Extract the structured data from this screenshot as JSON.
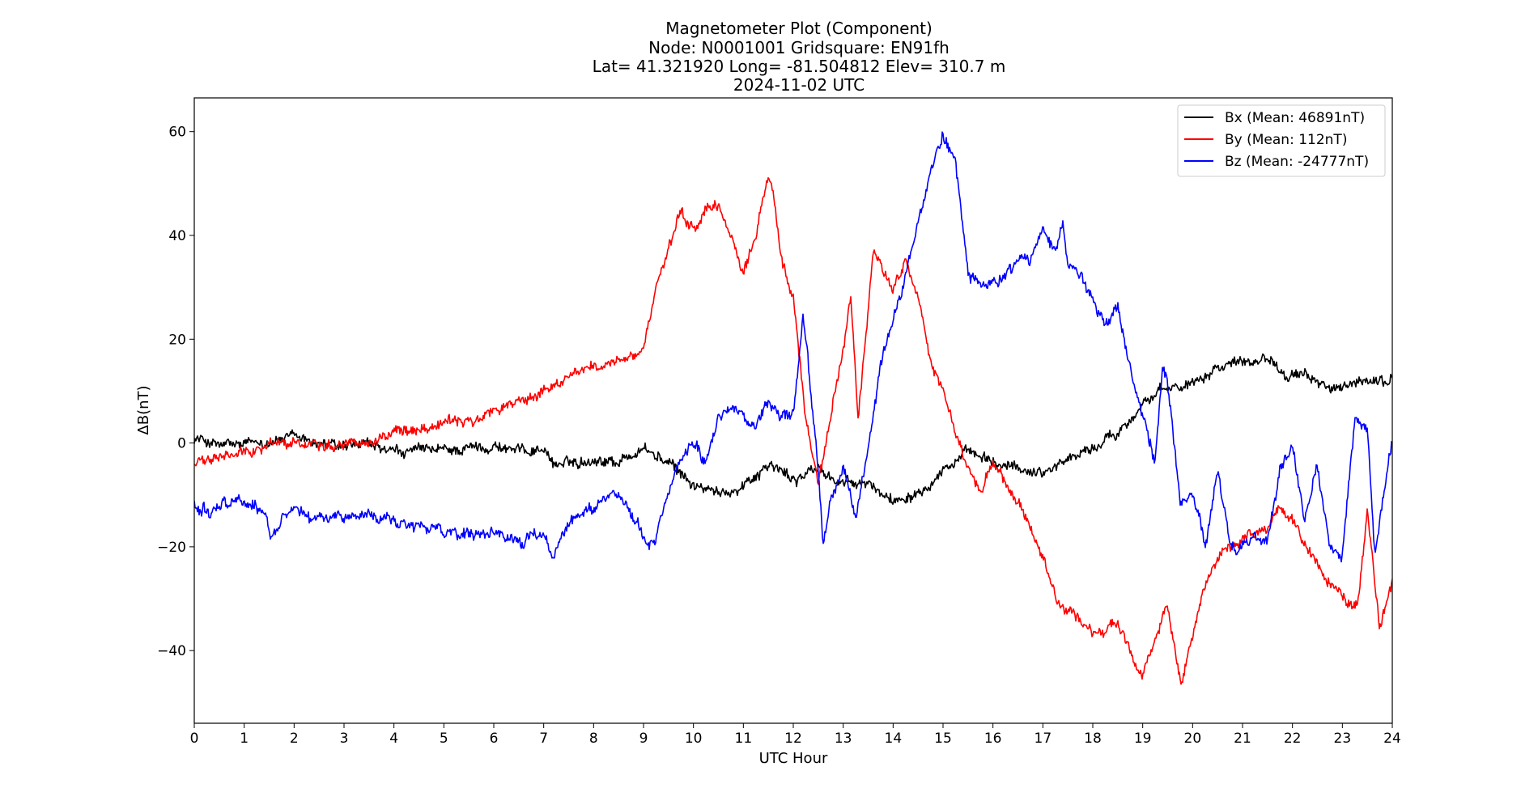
{
  "chart_data": {
    "type": "line",
    "title_lines": [
      "Magnetometer Plot (Component)",
      "Node:  N0001001     Gridsquare:  EN91fh",
      "Lat= 41.321920    Long= -81.504812    Elev= 310.7 m",
      "2024-11-02  UTC"
    ],
    "xlabel": "UTC Hour",
    "ylabel": "ΔB(nT)",
    "xlim": [
      0,
      24
    ],
    "ylim": [
      -54,
      66.5
    ],
    "x_ticks": [
      0,
      1,
      2,
      3,
      4,
      5,
      6,
      7,
      8,
      9,
      10,
      11,
      12,
      13,
      14,
      15,
      16,
      17,
      18,
      19,
      20,
      21,
      22,
      23,
      24
    ],
    "y_ticks": [
      -40,
      -20,
      0,
      20,
      40,
      60
    ],
    "y_tick_labels": [
      "−40",
      "−20",
      "0",
      "20",
      "40",
      "60"
    ],
    "grid": false,
    "legend_position": "top-right",
    "series": [
      {
        "name": "Bx (Mean: 46891nT)",
        "color": "#000000",
        "x": [
          0,
          0.5,
          1,
          1.5,
          2,
          2.5,
          3,
          3.5,
          4,
          4.5,
          5,
          5.5,
          6,
          6.5,
          7,
          7.2,
          7.5,
          8,
          8.5,
          9,
          9.5,
          10,
          10.5,
          11,
          11.5,
          12,
          12.5,
          13,
          13.5,
          14,
          14.5,
          15,
          15.5,
          16,
          16.5,
          17,
          17.5,
          18,
          18.5,
          19,
          19.5,
          20,
          20.5,
          21,
          21.5,
          22,
          22.5,
          23,
          23.5,
          24
        ],
        "y": [
          1,
          -0.5,
          -0.5,
          0.5,
          1,
          0,
          -1,
          -0.5,
          -2,
          -1.5,
          -1.5,
          -1,
          -0.5,
          -1.5,
          -1,
          -4,
          -4,
          -3,
          -3.5,
          -1,
          -4,
          -8,
          -10,
          -8,
          -4,
          -7,
          -5,
          -8,
          -8,
          -11,
          -9,
          -5,
          -2,
          -4,
          -5,
          -5.5,
          -3,
          -1,
          2,
          8,
          10,
          12,
          15,
          16,
          16.5,
          13,
          12,
          10,
          12,
          12
        ],
        "noise": 0.9
      },
      {
        "name": "By (Mean: 112nT)",
        "color": "#ff0000",
        "x": [
          0,
          0.5,
          1,
          1.5,
          2,
          2.5,
          3,
          3.5,
          4,
          4.5,
          5,
          5.5,
          6,
          6.5,
          7,
          7.5,
          8,
          8.5,
          9,
          9.2,
          9.5,
          9.75,
          10,
          10.25,
          10.5,
          10.75,
          11,
          11.25,
          11.5,
          11.6,
          11.75,
          12,
          12.25,
          12.5,
          12.75,
          13,
          13.15,
          13.3,
          13.6,
          14,
          14.25,
          14.5,
          14.75,
          15,
          15.25,
          15.5,
          15.75,
          16,
          16.25,
          16.5,
          17,
          17.25,
          17.5,
          18,
          18.5,
          19,
          19.5,
          19.75,
          20,
          20.25,
          20.5,
          21,
          21.5,
          21.75,
          22,
          22.5,
          23,
          23.3,
          23.5,
          23.75,
          24
        ],
        "y": [
          -4,
          -3,
          -2,
          0,
          0,
          0,
          0,
          0.5,
          2,
          3,
          4,
          4,
          6,
          8,
          10,
          13,
          15,
          15,
          18,
          28,
          37,
          44,
          41,
          45,
          45,
          40,
          33,
          40,
          52,
          48,
          35,
          28,
          5,
          -7,
          5,
          18,
          28,
          5,
          37,
          30,
          35,
          28,
          15,
          10,
          2,
          -5,
          -10,
          -4,
          -8,
          -12,
          -22,
          -30,
          -32,
          -37,
          -35,
          -45,
          -31,
          -47,
          -38,
          -28,
          -22,
          -19,
          -17,
          -12,
          -15,
          -24,
          -30,
          -32,
          -13,
          -35,
          -27
        ],
        "noise": 0.9
      },
      {
        "name": "Bz (Mean: -24777nT)",
        "color": "#0000ff",
        "x": [
          0,
          0.3,
          0.6,
          1,
          1.4,
          1.5,
          1.8,
          2,
          2.3,
          2.5,
          3,
          3.5,
          4,
          4.5,
          5,
          5.5,
          6,
          6.5,
          7,
          7.2,
          7.5,
          8,
          8.5,
          9,
          9.2,
          9.5,
          9.75,
          10,
          10.25,
          10.5,
          10.75,
          11,
          11.25,
          11.5,
          11.75,
          12,
          12.2,
          12.5,
          12.6,
          12.75,
          13,
          13.25,
          13.5,
          13.75,
          14,
          14.25,
          14.5,
          14.75,
          14.9,
          15,
          15.25,
          15.5,
          15.75,
          16,
          16.25,
          16.5,
          16.75,
          17,
          17.25,
          17.4,
          17.5,
          17.75,
          18,
          18.25,
          18.5,
          18.75,
          19,
          19.25,
          19.4,
          19.5,
          19.75,
          20,
          20.25,
          20.5,
          20.75,
          21,
          21.25,
          21.5,
          21.75,
          22,
          22.25,
          22.5,
          22.75,
          23,
          23.25,
          23.5,
          23.65,
          23.85,
          24
        ],
        "y": [
          -12,
          -13,
          -11,
          -11,
          -13,
          -18,
          -14,
          -13,
          -15,
          -14,
          -14,
          -14,
          -15,
          -16,
          -17,
          -18,
          -18,
          -19,
          -18,
          -22,
          -15,
          -12,
          -9,
          -18,
          -20,
          -10,
          -3,
          0,
          -3,
          5,
          8,
          5,
          3,
          8,
          5,
          5,
          24,
          -5,
          -20,
          -12,
          -5,
          -14,
          -2,
          15,
          25,
          32,
          42,
          52,
          57,
          60,
          55,
          33,
          30,
          30,
          32,
          35,
          35,
          42,
          38,
          44,
          35,
          32,
          28,
          23,
          25,
          14,
          5,
          -3,
          15,
          12,
          -12,
          -10,
          -20,
          -5,
          -19,
          -20,
          -18,
          -20,
          -5,
          -1,
          -15,
          -5,
          -20,
          -22,
          5,
          3,
          -22,
          -10,
          0
        ],
        "noise": 1.0
      }
    ]
  }
}
